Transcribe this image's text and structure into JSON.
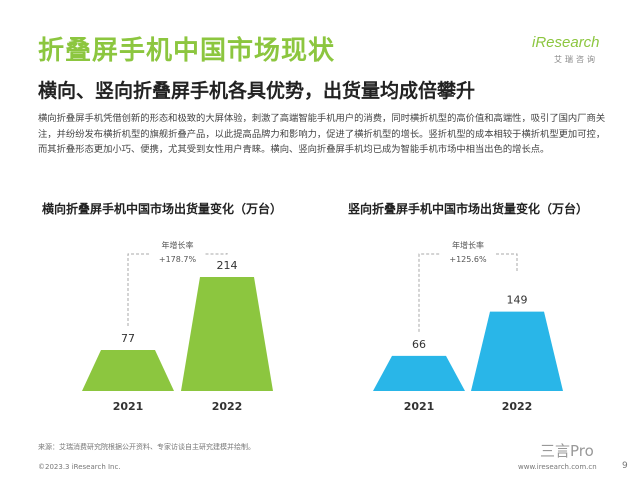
{
  "page": {
    "title": "折叠屏手机中国市场现状",
    "subtitle": "横向、竖向折叠屏手机各具优势，出货量均成倍攀升",
    "body": "横向折叠屏手机凭借创新的形态和极致的大屏体验，刺激了高端智能手机用户的消费，同时横折机型的高价值和高端性，吸引了国内厂商关注，并纷纷发布横折机型的旗舰折叠产品，以此提高品牌力和影响力，促进了横折机型的增长。竖折机型的成本相较于横折机型更加可控，而其折叠形态更加小巧、便携，尤其受到女性用户青睐。横向、竖向折叠屏手机均已成为智能手机市场中相当出色的增长点。",
    "source": "来源：艾瑞消费研究院根据公开资料、专家访谈自主研究建模并绘制。",
    "copyright": "©2023.3 iResearch Inc.",
    "website": "www.iresearch.com.cn",
    "page_number": "9",
    "watermark": "三言Pro"
  },
  "logo": {
    "wordmark": "iResearch",
    "subtext": "艾瑞咨询"
  },
  "chart_data": [
    {
      "type": "bar",
      "title": "横向折叠屏手机中国市场出货量变化（万台）",
      "categories": [
        "2021",
        "2022"
      ],
      "values": [
        77,
        214
      ],
      "growth_label": "年增长率",
      "growth_value": "+178.7%",
      "color": "#8cc63f"
    },
    {
      "type": "bar",
      "title": "竖向折叠屏手机中国市场出货量变化（万台）",
      "categories": [
        "2021",
        "2022"
      ],
      "values": [
        66,
        149
      ],
      "growth_label": "年增长率",
      "growth_value": "+125.6%",
      "color": "#29b6e8"
    }
  ]
}
